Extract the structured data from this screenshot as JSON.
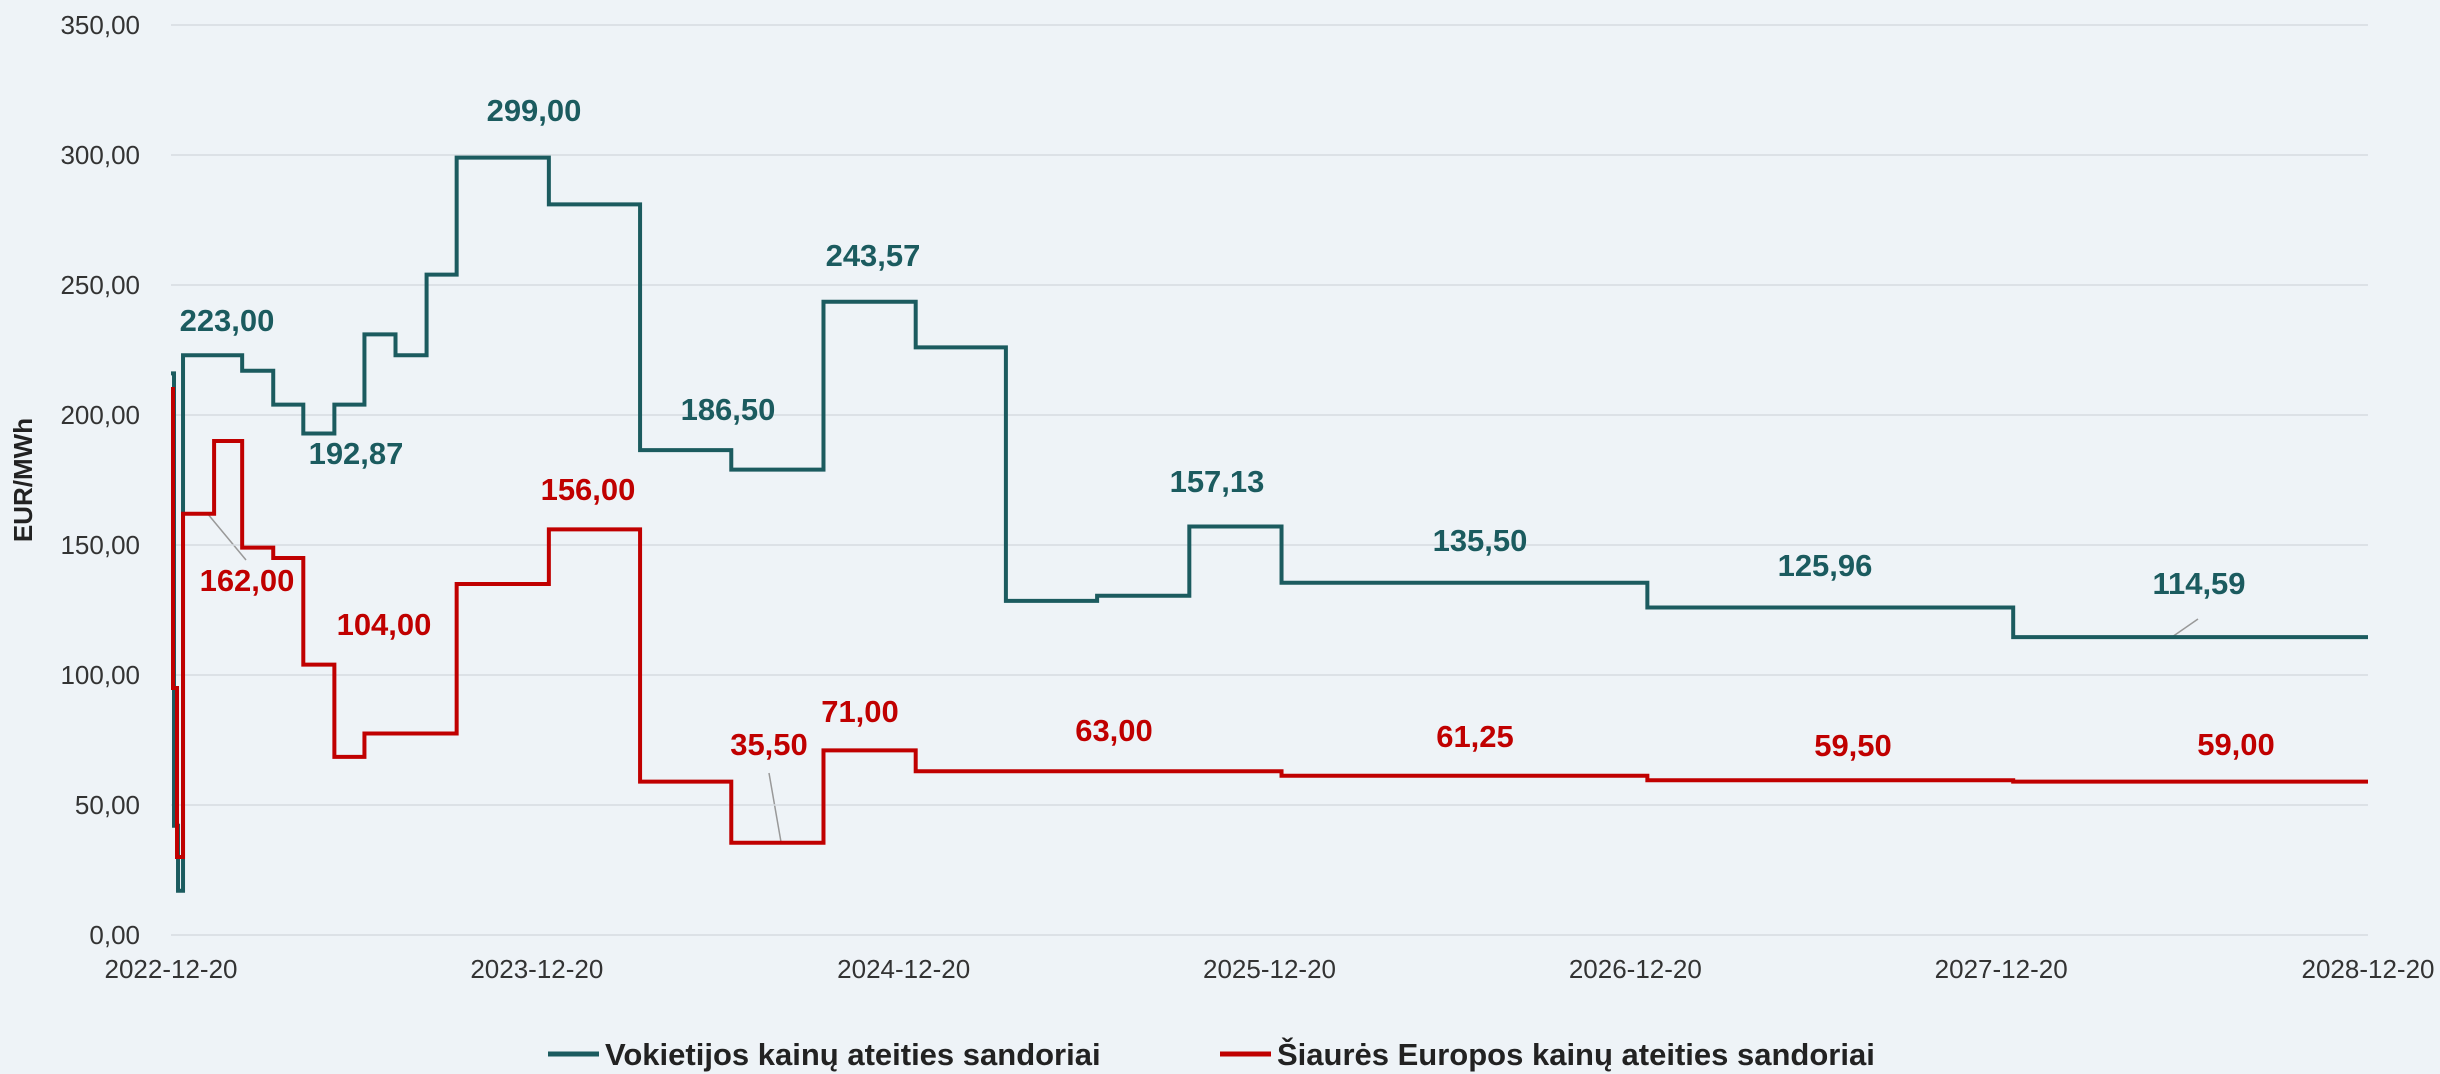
{
  "chart_data": {
    "type": "step",
    "y_label": "EUR/MWh",
    "ylim": [
      0,
      350
    ],
    "yticks": [
      {
        "value": 0,
        "label": "0,00"
      },
      {
        "value": 50,
        "label": "50,00"
      },
      {
        "value": 100,
        "label": "100,00"
      },
      {
        "value": 150,
        "label": "150,00"
      },
      {
        "value": 200,
        "label": "200,00"
      },
      {
        "value": 250,
        "label": "250,00"
      },
      {
        "value": 300,
        "label": "300,00"
      },
      {
        "value": 350,
        "label": "350,00"
      }
    ],
    "xlim": [
      "2022-12-20",
      "2028-12-20"
    ],
    "xticks": [
      "2022-12-20",
      "2023-12-20",
      "2024-12-20",
      "2025-12-20",
      "2026-12-20",
      "2027-12-20",
      "2028-12-20"
    ],
    "grid": true,
    "legend": "bottom",
    "series": [
      {
        "name": "Vokietijos kainų ateities sandoriai",
        "color": "#1b5b5f",
        "x": [
          "2022-12-20",
          "2022-12-23",
          "2022-12-27",
          "2023-01-01",
          "2023-03-01",
          "2023-04-01",
          "2023-05-01",
          "2023-06-01",
          "2023-07-01",
          "2023-08-01",
          "2023-09-01",
          "2023-10-01",
          "2024-01-01",
          "2024-04-01",
          "2024-07-01",
          "2024-10-01",
          "2025-01-01",
          "2025-04-01",
          "2025-07-01",
          "2025-10-01",
          "2026-01-01",
          "2027-01-01",
          "2028-01-01",
          "2028-12-20"
        ],
        "values": [
          216,
          42,
          17,
          223,
          217,
          204,
          192.87,
          204,
          231,
          223,
          254,
          299,
          281,
          186.5,
          179,
          243.57,
          226,
          128.5,
          130.5,
          157.13,
          135.5,
          125.96,
          114.59,
          114.59
        ],
        "value_labels": [
          null,
          null,
          null,
          "223,00",
          null,
          null,
          "192,87",
          null,
          null,
          null,
          null,
          "299,00",
          null,
          "186,50",
          null,
          "243,57",
          null,
          null,
          null,
          "157,13",
          "135,50",
          "125,96",
          "114,59",
          null
        ]
      },
      {
        "name": "Šiaurės Europos kainų ateities sandoriai",
        "color": "#c00000",
        "x": [
          "2022-12-20",
          "2022-12-22",
          "2022-12-26",
          "2023-01-01",
          "2023-02-01",
          "2023-03-01",
          "2023-04-01",
          "2023-05-01",
          "2023-06-01",
          "2023-07-01",
          "2023-10-01",
          "2024-01-01",
          "2024-04-01",
          "2024-07-01",
          "2024-10-01",
          "2025-01-01",
          "2026-01-01",
          "2027-01-01",
          "2028-01-01",
          "2028-12-20"
        ],
        "values": [
          210,
          95,
          30,
          162,
          190,
          149,
          145,
          104,
          68.5,
          77.5,
          135,
          156,
          59,
          35.5,
          71,
          63,
          61.25,
          59.5,
          59,
          59
        ],
        "value_labels": [
          null,
          null,
          null,
          "162,00",
          null,
          null,
          null,
          "104,00",
          null,
          null,
          null,
          "156,00",
          null,
          "35,50",
          "71,00",
          "63,00",
          "61,25",
          "59,50",
          "59,00",
          null
        ]
      }
    ]
  }
}
